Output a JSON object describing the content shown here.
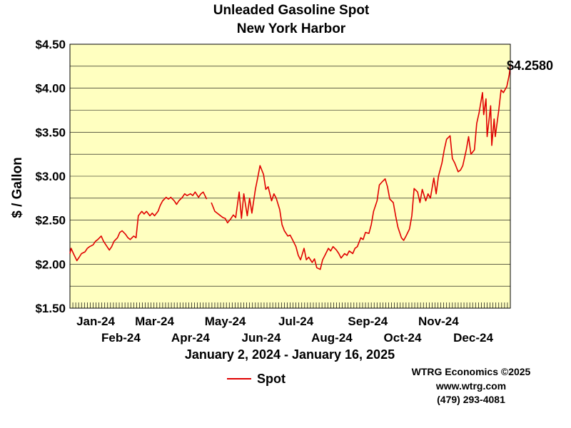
{
  "chart_data": {
    "type": "line",
    "title": "Unleaded Gasoline Spot",
    "subtitle": "New York Harbor",
    "ylabel": "$ / Gallon",
    "xlabel": "January 2, 2024 - January 16, 2025",
    "ylim": [
      1.5,
      4.5
    ],
    "yticks": [
      "$1.50",
      "$2.00",
      "$2.50",
      "$3.00",
      "$3.50",
      "$4.00",
      "$4.50"
    ],
    "xticks_upper": [
      "Jan-24",
      "Mar-24",
      "May-24",
      "Jul-24",
      "Sep-24",
      "Nov-24"
    ],
    "xticks_lower": [
      "Feb-24",
      "Apr-24",
      "Jun-24",
      "Aug-24",
      "Oct-24",
      "Dec-24"
    ],
    "grid": true,
    "legend_position": "bottom",
    "end_label": "$4.2580",
    "series": [
      {
        "name": "Spot",
        "color": "#e00000",
        "segments": [
          [
            [
              "2024-01-02",
              2.12
            ],
            [
              "2024-01-03",
              2.18
            ],
            [
              "2024-01-05",
              2.12
            ],
            [
              "2024-01-08",
              2.04
            ],
            [
              "2024-01-10",
              2.08
            ],
            [
              "2024-01-12",
              2.12
            ],
            [
              "2024-01-15",
              2.14
            ],
            [
              "2024-01-17",
              2.18
            ],
            [
              "2024-01-19",
              2.2
            ],
            [
              "2024-01-22",
              2.22
            ],
            [
              "2024-01-24",
              2.26
            ],
            [
              "2024-01-26",
              2.28
            ],
            [
              "2024-01-29",
              2.32
            ],
            [
              "2024-01-31",
              2.26
            ],
            [
              "2024-02-02",
              2.22
            ],
            [
              "2024-02-05",
              2.16
            ],
            [
              "2024-02-07",
              2.2
            ],
            [
              "2024-02-09",
              2.26
            ],
            [
              "2024-02-12",
              2.3
            ],
            [
              "2024-02-14",
              2.36
            ],
            [
              "2024-02-16",
              2.38
            ],
            [
              "2024-02-19",
              2.34
            ],
            [
              "2024-02-21",
              2.3
            ],
            [
              "2024-02-23",
              2.28
            ],
            [
              "2024-02-26",
              2.32
            ],
            [
              "2024-02-28",
              2.3
            ],
            [
              "2024-03-01",
              2.55
            ],
            [
              "2024-03-04",
              2.6
            ],
            [
              "2024-03-06",
              2.57
            ],
            [
              "2024-03-08",
              2.6
            ],
            [
              "2024-03-11",
              2.55
            ],
            [
              "2024-03-13",
              2.58
            ],
            [
              "2024-03-15",
              2.55
            ],
            [
              "2024-03-18",
              2.6
            ],
            [
              "2024-03-20",
              2.67
            ],
            [
              "2024-03-22",
              2.72
            ],
            [
              "2024-03-25",
              2.76
            ],
            [
              "2024-03-27",
              2.74
            ],
            [
              "2024-03-29",
              2.76
            ],
            [
              "2024-04-01",
              2.72
            ],
            [
              "2024-04-03",
              2.68
            ],
            [
              "2024-04-05",
              2.72
            ],
            [
              "2024-04-08",
              2.76
            ],
            [
              "2024-04-10",
              2.8
            ],
            [
              "2024-04-12",
              2.78
            ],
            [
              "2024-04-15",
              2.8
            ],
            [
              "2024-04-17",
              2.78
            ],
            [
              "2024-04-19",
              2.82
            ],
            [
              "2024-04-22",
              2.76
            ],
            [
              "2024-04-24",
              2.8
            ],
            [
              "2024-04-26",
              2.82
            ],
            [
              "2024-04-29",
              2.74
            ]
          ],
          [
            [
              "2024-05-03",
              2.7
            ],
            [
              "2024-05-06",
              2.6
            ],
            [
              "2024-05-08",
              2.58
            ],
            [
              "2024-05-10",
              2.56
            ],
            [
              "2024-05-13",
              2.53
            ],
            [
              "2024-05-15",
              2.52
            ],
            [
              "2024-05-17",
              2.47
            ],
            [
              "2024-05-20",
              2.52
            ],
            [
              "2024-05-22",
              2.56
            ],
            [
              "2024-05-24",
              2.53
            ],
            [
              "2024-05-27",
              2.82
            ],
            [
              "2024-05-29",
              2.52
            ],
            [
              "2024-05-31",
              2.8
            ],
            [
              "2024-06-03",
              2.55
            ],
            [
              "2024-06-05",
              2.75
            ],
            [
              "2024-06-07",
              2.58
            ],
            [
              "2024-06-10",
              2.85
            ],
            [
              "2024-06-12",
              2.98
            ],
            [
              "2024-06-14",
              3.12
            ],
            [
              "2024-06-17",
              3.02
            ],
            [
              "2024-06-19",
              2.85
            ],
            [
              "2024-06-21",
              2.88
            ],
            [
              "2024-06-24",
              2.72
            ],
            [
              "2024-06-26",
              2.8
            ],
            [
              "2024-06-28",
              2.75
            ],
            [
              "2024-07-01",
              2.62
            ],
            [
              "2024-07-03",
              2.45
            ],
            [
              "2024-07-05",
              2.38
            ],
            [
              "2024-07-08",
              2.32
            ],
            [
              "2024-07-10",
              2.33
            ],
            [
              "2024-07-12",
              2.28
            ],
            [
              "2024-07-15",
              2.2
            ],
            [
              "2024-07-17",
              2.1
            ],
            [
              "2024-07-19",
              2.05
            ],
            [
              "2024-07-22",
              2.18
            ],
            [
              "2024-07-24",
              2.05
            ],
            [
              "2024-07-26",
              2.08
            ],
            [
              "2024-07-29",
              2.02
            ],
            [
              "2024-07-31",
              2.06
            ],
            [
              "2024-08-02",
              1.96
            ],
            [
              "2024-08-05",
              1.94
            ],
            [
              "2024-08-07",
              2.05
            ],
            [
              "2024-08-09",
              2.1
            ],
            [
              "2024-08-12",
              2.18
            ],
            [
              "2024-08-14",
              2.15
            ],
            [
              "2024-08-16",
              2.2
            ],
            [
              "2024-08-19",
              2.16
            ],
            [
              "2024-08-21",
              2.12
            ],
            [
              "2024-08-23",
              2.07
            ],
            [
              "2024-08-26",
              2.12
            ],
            [
              "2024-08-28",
              2.1
            ],
            [
              "2024-08-30",
              2.15
            ],
            [
              "2024-09-02",
              2.12
            ],
            [
              "2024-09-04",
              2.18
            ],
            [
              "2024-09-06",
              2.2
            ],
            [
              "2024-09-09",
              2.3
            ],
            [
              "2024-09-11",
              2.28
            ],
            [
              "2024-09-13",
              2.36
            ],
            [
              "2024-09-16",
              2.35
            ],
            [
              "2024-09-18",
              2.45
            ],
            [
              "2024-09-20",
              2.6
            ],
            [
              "2024-09-23",
              2.72
            ],
            [
              "2024-09-25",
              2.9
            ],
            [
              "2024-09-27",
              2.93
            ],
            [
              "2024-09-30",
              2.97
            ],
            [
              "2024-10-02",
              2.88
            ],
            [
              "2024-10-04",
              2.74
            ],
            [
              "2024-10-07",
              2.7
            ],
            [
              "2024-10-09",
              2.55
            ],
            [
              "2024-10-11",
              2.42
            ],
            [
              "2024-10-14",
              2.3
            ],
            [
              "2024-10-16",
              2.27
            ],
            [
              "2024-10-18",
              2.32
            ],
            [
              "2024-10-21",
              2.4
            ],
            [
              "2024-10-23",
              2.55
            ],
            [
              "2024-10-25",
              2.86
            ],
            [
              "2024-10-28",
              2.82
            ],
            [
              "2024-10-30",
              2.7
            ],
            [
              "2024-11-01",
              2.85
            ],
            [
              "2024-11-04",
              2.72
            ],
            [
              "2024-11-06",
              2.8
            ],
            [
              "2024-11-08",
              2.75
            ],
            [
              "2024-11-11",
              2.98
            ],
            [
              "2024-11-13",
              2.8
            ],
            [
              "2024-11-15",
              3.0
            ],
            [
              "2024-11-18",
              3.15
            ],
            [
              "2024-11-20",
              3.3
            ],
            [
              "2024-11-22",
              3.42
            ],
            [
              "2024-11-25",
              3.46
            ],
            [
              "2024-11-27",
              3.2
            ],
            [
              "2024-11-29",
              3.15
            ],
            [
              "2024-12-02",
              3.05
            ],
            [
              "2024-12-04",
              3.07
            ],
            [
              "2024-12-06",
              3.12
            ],
            [
              "2024-12-09",
              3.3
            ],
            [
              "2024-12-11",
              3.45
            ],
            [
              "2024-12-13",
              3.25
            ],
            [
              "2024-12-16",
              3.3
            ],
            [
              "2024-12-18",
              3.6
            ],
            [
              "2024-12-20",
              3.72
            ],
            [
              "2024-12-23",
              3.95
            ],
            [
              "2024-12-24",
              3.7
            ],
            [
              "2024-12-26",
              3.88
            ],
            [
              "2024-12-27",
              3.45
            ],
            [
              "2024-12-30",
              3.8
            ],
            [
              "2024-12-31",
              3.35
            ],
            [
              "2025-01-02",
              3.65
            ],
            [
              "2025-01-03",
              3.45
            ],
            [
              "2025-01-06",
              3.75
            ],
            [
              "2025-01-08",
              3.98
            ],
            [
              "2025-01-10",
              3.95
            ],
            [
              "2025-01-13",
              4.02
            ],
            [
              "2025-01-15",
              4.15
            ],
            [
              "2025-01-16",
              4.258
            ]
          ]
        ]
      }
    ]
  },
  "credits": {
    "line1": "WTRG Economics ©2025",
    "line2": "www.wtrg.com",
    "line3": "(479) 293-4081"
  }
}
